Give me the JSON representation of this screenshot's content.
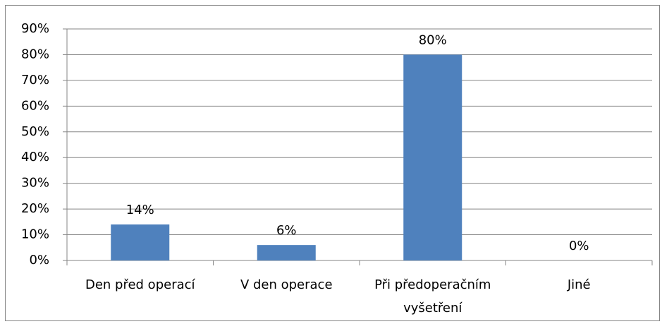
{
  "chart_data": {
    "type": "bar",
    "categories": [
      "Den před operací",
      "V den operace",
      "Při předoperačním vyšetření",
      "Jiné"
    ],
    "values": [
      14,
      6,
      80,
      0
    ],
    "value_labels": [
      "14%",
      "6%",
      "80%",
      "0%"
    ],
    "color": "#4f81bd",
    "ylim": [
      0,
      90
    ],
    "yticks": [
      {
        "value": 0,
        "label": "0%"
      },
      {
        "value": 10,
        "label": "10%"
      },
      {
        "value": 20,
        "label": "20%"
      },
      {
        "value": 30,
        "label": "30%"
      },
      {
        "value": 40,
        "label": "40%"
      },
      {
        "value": 50,
        "label": "50%"
      },
      {
        "value": 60,
        "label": "60%"
      },
      {
        "value": 70,
        "label": "70%"
      },
      {
        "value": 80,
        "label": "80%"
      },
      {
        "value": 90,
        "label": "90%"
      }
    ],
    "grid": true
  }
}
